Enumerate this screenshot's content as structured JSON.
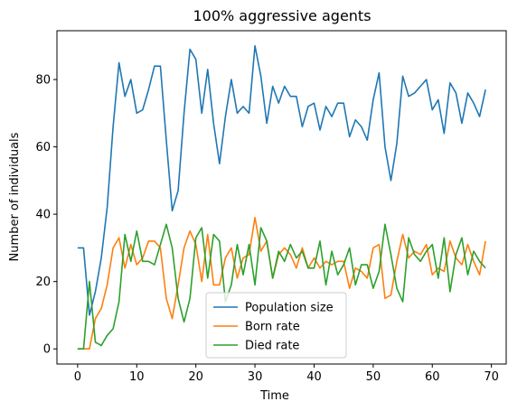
{
  "chart_data": {
    "type": "line",
    "title": "100% aggressive agents",
    "xlabel": "Time",
    "ylabel": "Number of individuals",
    "xlim": [
      -3.5,
      72.5
    ],
    "ylim": [
      -4.5,
      94.5
    ],
    "x_ticks": [
      0,
      10,
      20,
      30,
      40,
      50,
      60,
      70
    ],
    "y_ticks": [
      0,
      20,
      40,
      60,
      80
    ],
    "grid": false,
    "legend_position": "lower center",
    "series": [
      {
        "name": "Population size",
        "color": "#1f77b4",
        "values": [
          30,
          30,
          10,
          17,
          27,
          42,
          66,
          85,
          75,
          80,
          70,
          71,
          77,
          84,
          84,
          62,
          41,
          47,
          70,
          89,
          86,
          70,
          83,
          67,
          55,
          69,
          80,
          70,
          72,
          70,
          90,
          81,
          67,
          78,
          73,
          78,
          75,
          75,
          66,
          72,
          73,
          65,
          72,
          69,
          73,
          73,
          63,
          68,
          66,
          62,
          74,
          82,
          60,
          50,
          61,
          81,
          75,
          76,
          78,
          80,
          71,
          74,
          64,
          79,
          76,
          67,
          76,
          73,
          69,
          77
        ]
      },
      {
        "name": "Born rate",
        "color": "#ff7f0e",
        "values": [
          0,
          0,
          0,
          9,
          12,
          19,
          30,
          33,
          24,
          31,
          25,
          27,
          32,
          32,
          30,
          15,
          9,
          19,
          30,
          35,
          31,
          20,
          34,
          19,
          19,
          27,
          30,
          21,
          27,
          28,
          39,
          29,
          32,
          21,
          28,
          30,
          28,
          24,
          30,
          24,
          27,
          24,
          26,
          25,
          26,
          26,
          18,
          24,
          23,
          21,
          30,
          31,
          15,
          16,
          26,
          34,
          27,
          29,
          28,
          31,
          22,
          24,
          23,
          32,
          27,
          25,
          31,
          26,
          22,
          32
        ]
      },
      {
        "name": "Died rate",
        "color": "#2ca02c",
        "values": [
          0,
          0,
          20,
          2,
          1,
          4,
          6,
          14,
          34,
          26,
          35,
          26,
          26,
          25,
          31,
          37,
          30,
          15,
          8,
          15,
          33,
          36,
          21,
          34,
          32,
          14,
          19,
          31,
          22,
          31,
          19,
          36,
          32,
          21,
          29,
          26,
          31,
          27,
          29,
          24,
          24,
          32,
          19,
          29,
          22,
          25,
          30,
          19,
          25,
          25,
          18,
          23,
          37,
          28,
          18,
          14,
          33,
          28,
          26,
          29,
          31,
          21,
          33,
          17,
          28,
          33,
          22,
          29,
          26,
          24
        ]
      }
    ]
  }
}
